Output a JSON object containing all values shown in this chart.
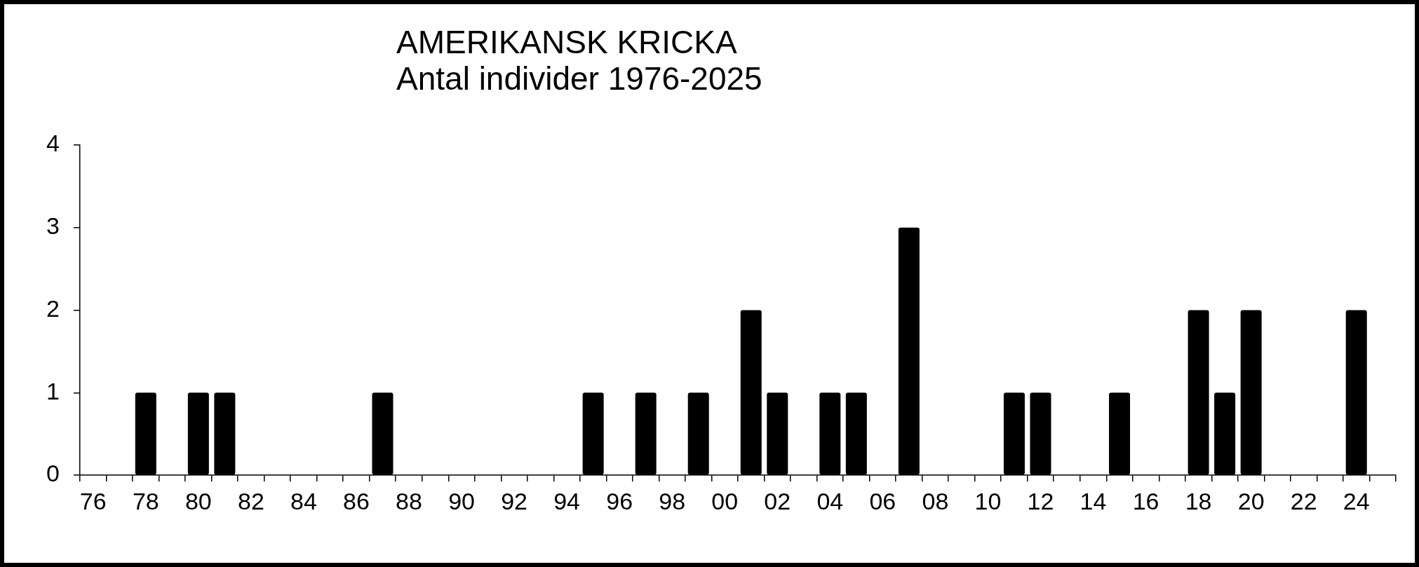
{
  "chart_data": {
    "type": "bar",
    "title": "AMERIKANSK KRICKA",
    "subtitle": "Antal individer 1976-2025",
    "categories": [
      "76",
      null,
      "78",
      null,
      "80",
      null,
      "82",
      null,
      "84",
      null,
      "86",
      null,
      "88",
      null,
      "90",
      null,
      "92",
      null,
      "94",
      null,
      "96",
      null,
      "98",
      null,
      "00",
      null,
      "02",
      null,
      "04",
      null,
      "06",
      null,
      "08",
      null,
      "10",
      null,
      "12",
      null,
      "14",
      null,
      "16",
      null,
      "18",
      null,
      "20",
      null,
      "22",
      null,
      "24",
      null
    ],
    "values": [
      0,
      0,
      1,
      0,
      1,
      1,
      0,
      0,
      0,
      0,
      0,
      1,
      0,
      0,
      0,
      0,
      0,
      0,
      0,
      1,
      0,
      1,
      0,
      1,
      0,
      2,
      1,
      0,
      1,
      1,
      0,
      3,
      0,
      0,
      0,
      1,
      1,
      0,
      0,
      1,
      0,
      0,
      2,
      1,
      2,
      0,
      0,
      0,
      2,
      0
    ],
    "color": "#000000",
    "ylim": [
      0,
      4
    ],
    "yticks": [
      0,
      1,
      2,
      3,
      4
    ]
  }
}
